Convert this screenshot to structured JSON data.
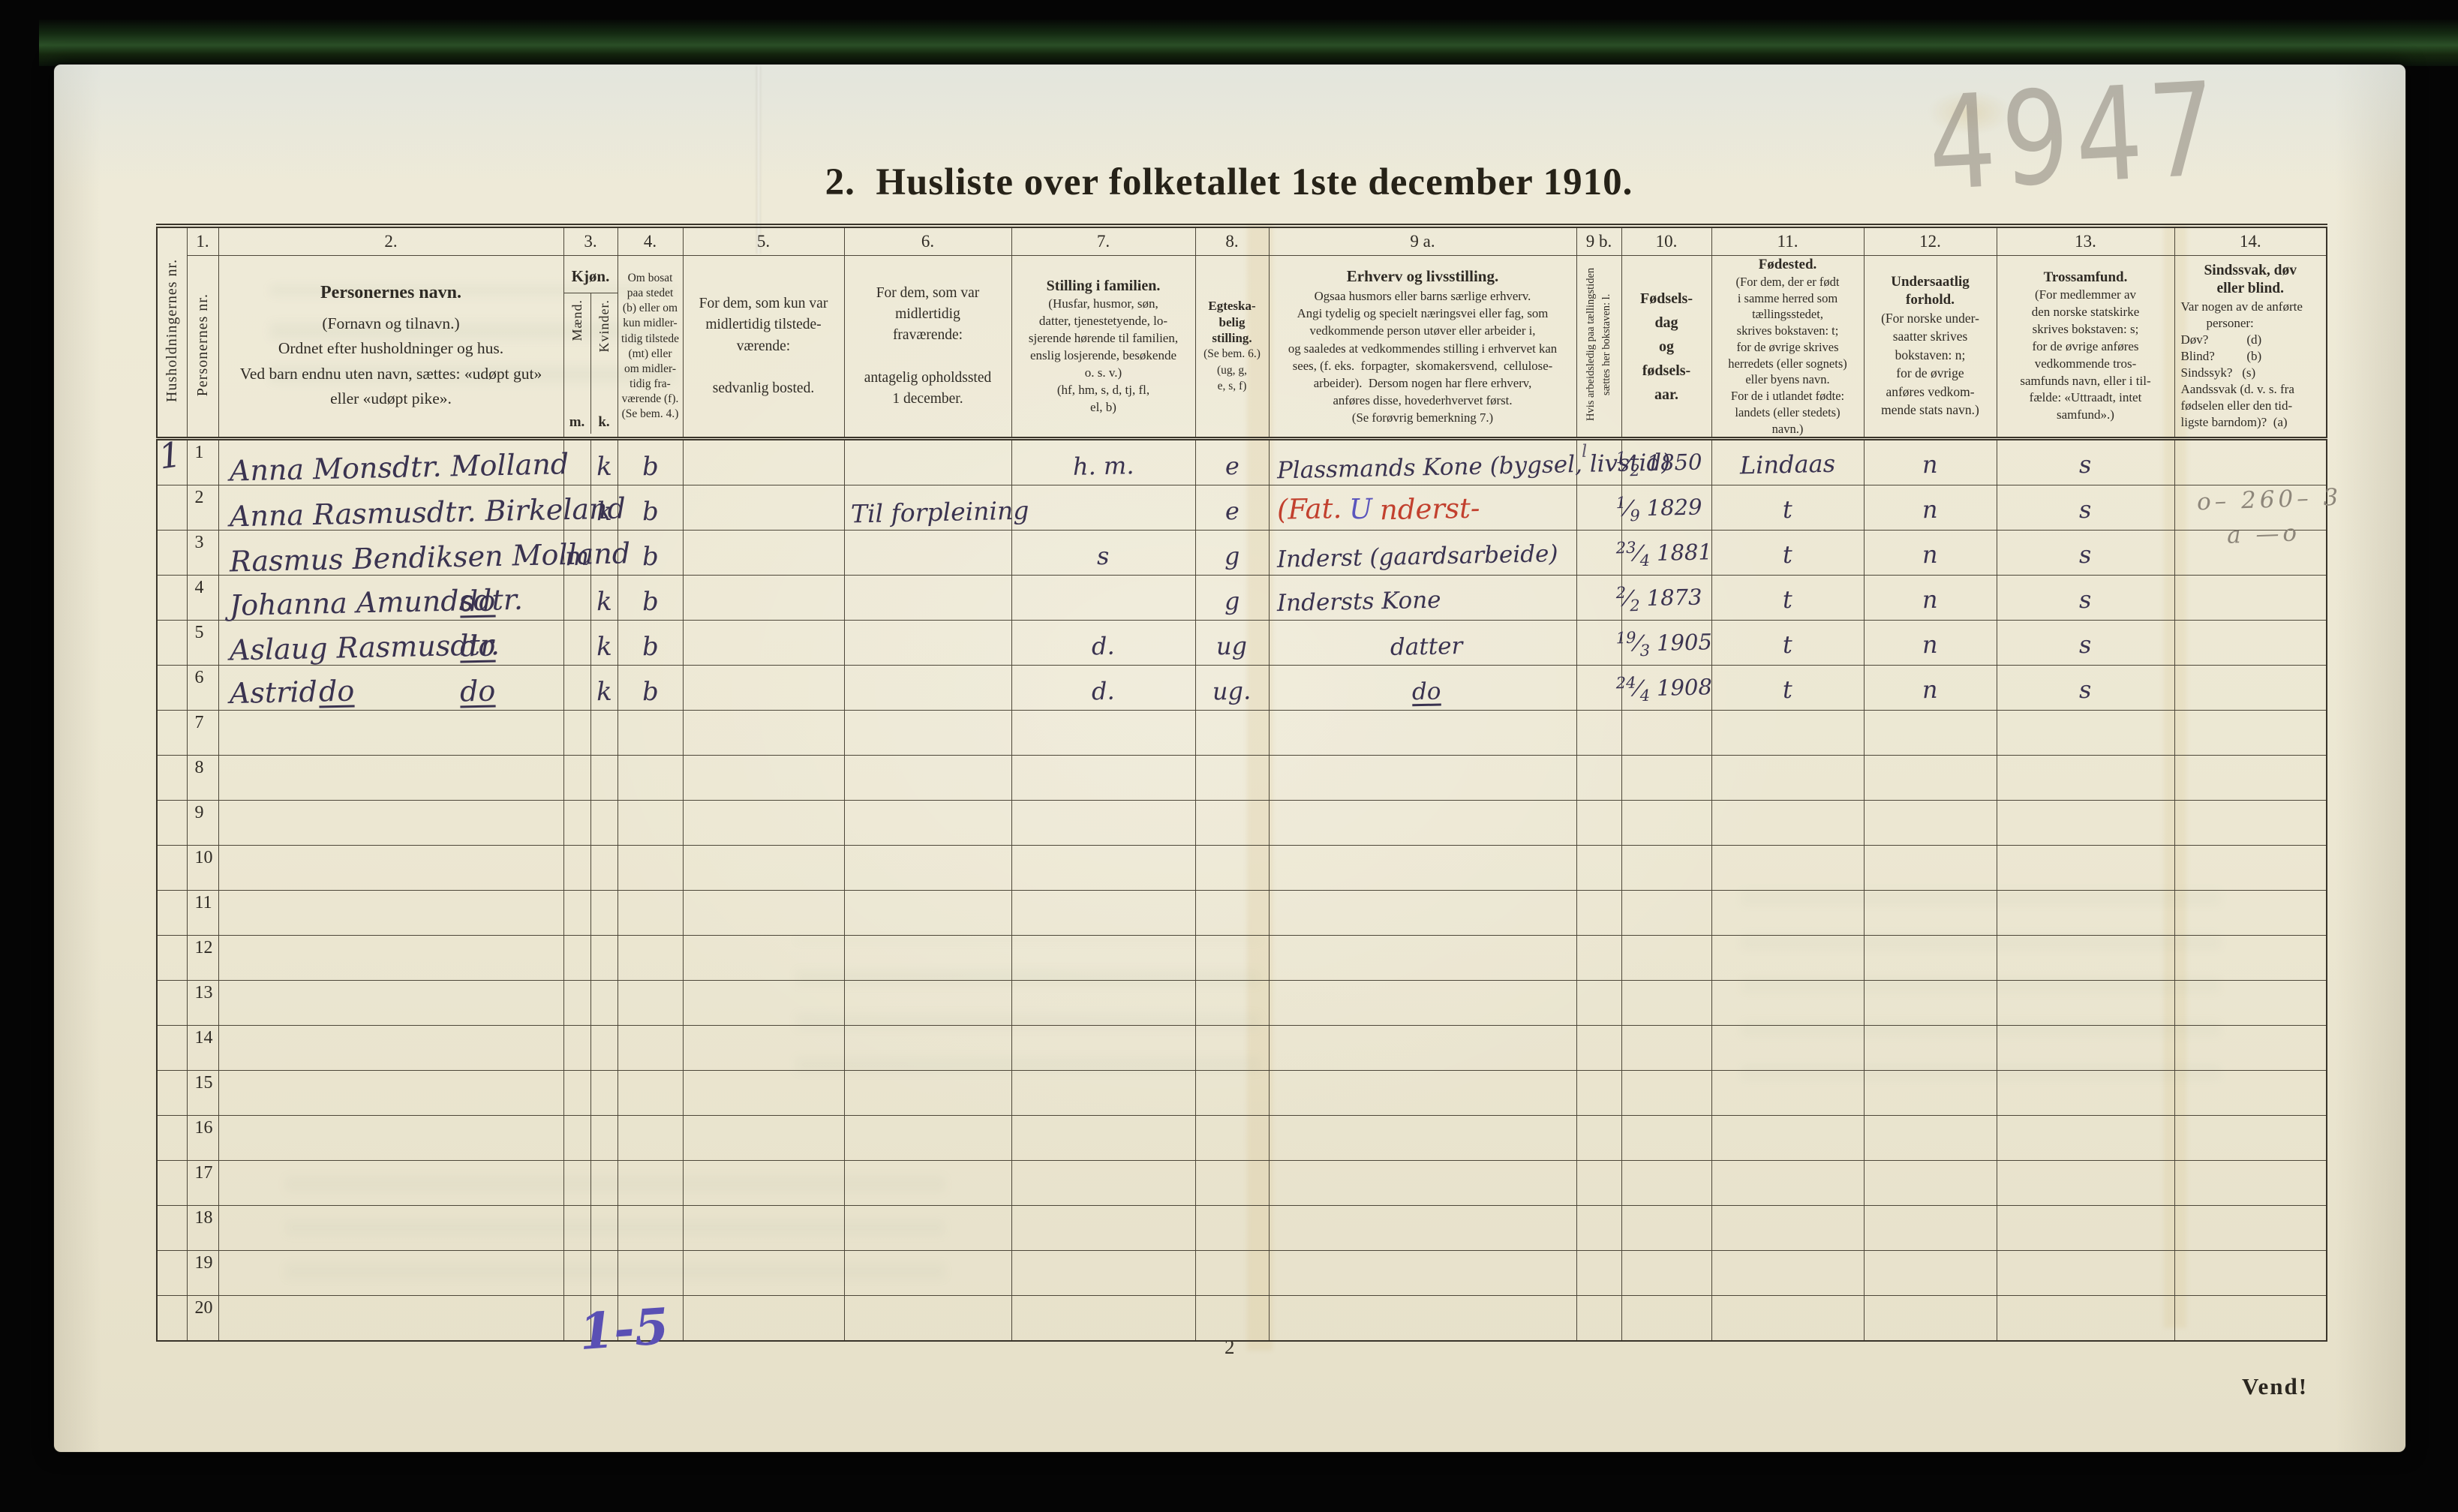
{
  "page": {
    "title": "2.  Husliste over folketallet 1ste december 1910.",
    "page_number": "2",
    "vend_note": "Vend!",
    "pencil_top_right": "4947",
    "pencil_margin_note": [
      "o– 260– 3",
      "a —o"
    ],
    "blue_note_bottom": "1-5"
  },
  "table": {
    "header": {
      "numbers": {
        "c1": "1.",
        "c2": "2.",
        "c3": "3.",
        "c4": "4.",
        "c5": "5.",
        "c6": "6.",
        "c7": "7.",
        "c8": "8.",
        "c9a": "9 a.",
        "c9b": "9 b.",
        "c10": "10.",
        "c11": "11.",
        "c12": "12.",
        "c13": "13.",
        "c14": "14."
      },
      "household_nr": "Husholdningernes nr.",
      "person_nr": "Personernes nr.",
      "c2_title": "Personernes navn.",
      "c2_lines": [
        "(Fornavn og tilnavn.)",
        "Ordnet efter husholdninger og hus.",
        "Ved barn endnu uten navn, sættes: «udøpt gut»",
        "eller «udøpt pike»."
      ],
      "c3_title": "Kjøn.",
      "c3_male": "Mænd.",
      "c3_female": "Kvinder.",
      "c3_m": "m.",
      "c3_k": "k.",
      "c4_lines": [
        "Om bosat",
        "paa stedet",
        "(b) eller om",
        "kun midler-",
        "tidig tilstede",
        "(mt) eller",
        "om midler-",
        "tidig fra-",
        "værende (f).",
        "(Se bem. 4.)"
      ],
      "c5_lines": [
        "For dem, som kun var",
        "midlertidig tilstede-",
        "værende:",
        "",
        "sedvanlig bosted."
      ],
      "c6_lines": [
        "For dem, som var",
        "midlertidig",
        "fraværende:",
        "",
        "antagelig opholdssted",
        "1 december."
      ],
      "c7_title": "Stilling i familien.",
      "c7_lines": [
        "(Husfar, husmor, søn,",
        "datter, tjenestetyende, lo-",
        "sjerende hørende til familien,",
        "enslig losjerende, besøkende",
        "o. s. v.)",
        "(hf, hm, s, d, tj, fl,",
        "el, b)"
      ],
      "c8_title": [
        "Egteska-",
        "belig",
        "stilling."
      ],
      "c8_lines": [
        "(Se bem. 6.)",
        "(ug, g,",
        "e, s, f)"
      ],
      "c9a_title": "Erhverv og livsstilling.",
      "c9a_lines": [
        "Ogsaa husmors eller barns særlige erhverv.",
        "Angi tydelig og specielt næringsvei eller fag, som",
        "vedkommende person utøver eller arbeider i,",
        "og saaledes at vedkommendes stilling i erhvervet kan",
        "sees, (f. eks.  forpagter,  skomakersvend,  cellulose-",
        "arbeider).  Dersom nogen har flere erhverv,",
        "anføres disse, hovederhvervet først.",
        "(Se forøvrig bemerkning 7.)"
      ],
      "c9b_text": "Hvis arbeidsledig paa tællingstiden sættes her bokstaven: l.",
      "c10_lines": [
        "Fødsels-",
        "dag",
        "og",
        "fødsels-",
        "aar."
      ],
      "c11_title": "Fødested.",
      "c11_lines": [
        "(For dem, der er født",
        "i samme herred som",
        "tællingsstedet,",
        "skrives bokstaven: t;",
        "for de øvrige skrives",
        "herredets (eller sognets)",
        "eller byens navn.",
        "For de i utlandet fødte:",
        "landets (eller stedets)",
        "navn.)"
      ],
      "c12_title": [
        "Undersaatlig",
        "forhold."
      ],
      "c12_lines": [
        "(For norske under-",
        "saatter skrives",
        "bokstaven: n;",
        "for de øvrige",
        "anføres vedkom-",
        "mende stats navn.)"
      ],
      "c13_title": "Trossamfund.",
      "c13_lines": [
        "(For medlemmer av",
        "den norske statskirke",
        "skrives bokstaven: s;",
        "for de øvrige anføres",
        "vedkommende tros-",
        "samfunds navn, eller i til-",
        "fælde: «Uttraadt, intet",
        "samfund».)"
      ],
      "c14_title": [
        "Sindssvak, døv",
        "eller blind."
      ],
      "c14_lines": [
        "Var nogen av de anførte",
        "        personer:",
        "Døv?            (d)",
        "Blind?          (b)",
        "Sindssyk?   (s)",
        "Aandssvak (d. v. s. fra",
        "fødselen eller den tid-",
        "ligste barndom)?  (a)"
      ]
    },
    "rows": [
      {
        "hh": "1",
        "nr": "1",
        "name": "Anna Monsdtr. Molland",
        "k": "k",
        "c4": "b",
        "c7": "h. m.",
        "c8": "e",
        "c9a": "Plassmands Kone (bygsel, livstid)",
        "c9b": "l",
        "c10": "1/2 1850",
        "c11": "Lindaas",
        "c12": "n",
        "c13": "s"
      },
      {
        "nr": "2",
        "name": "Anna Rasmusdtr. Birkeland",
        "k": "k",
        "c4": "b",
        "c6": "Til forpleining",
        "c8": "e",
        "c9a_red1": "(Fat. ",
        "c9a_blue": "U",
        "c9a_red2": "nderst-",
        "c10": "1/9 1829",
        "c11": "t",
        "c12": "n",
        "c13": "s"
      },
      {
        "nr": "3",
        "name": "Rasmus Bendiksen Molland",
        "m": "m",
        "c4": "b",
        "c7": "s",
        "c8": "g",
        "c9a": "Inderst (gaardsarbeide)",
        "c10": "23/4 1881",
        "c11": "t",
        "c12": "n",
        "c13": "s"
      },
      {
        "nr": "4",
        "name": "Johanna Amundsdtr.",
        "name_d2": "do",
        "k": "k",
        "c4": "b",
        "c8": "g",
        "c9a": "Indersts Kone",
        "c10": "2/2 1873",
        "c11": "t",
        "c12": "n",
        "c13": "s"
      },
      {
        "nr": "5",
        "name": "Aslaug Rasmusdtr.",
        "name_d2": "do",
        "k": "k",
        "c4": "b",
        "c7": "d.",
        "c8": "ug",
        "c9a": "datter",
        "c10": "19/3 1905",
        "c11": "t",
        "c12": "n",
        "c13": "s"
      },
      {
        "nr": "6",
        "name": "Astrid",
        "name_d1": "do",
        "name_d2": "do",
        "k": "k",
        "c4": "b",
        "c7": "d.",
        "c8": "ug.",
        "c9a": "do",
        "c10": "24/4 1908",
        "c11": "t",
        "c12": "n",
        "c13": "s"
      },
      {
        "nr": "7"
      },
      {
        "nr": "8"
      },
      {
        "nr": "9"
      },
      {
        "nr": "10"
      },
      {
        "nr": "11"
      },
      {
        "nr": "12"
      },
      {
        "nr": "13"
      },
      {
        "nr": "14"
      },
      {
        "nr": "15"
      },
      {
        "nr": "16"
      },
      {
        "nr": "17"
      },
      {
        "nr": "18"
      },
      {
        "nr": "19"
      },
      {
        "nr": "20"
      }
    ]
  }
}
